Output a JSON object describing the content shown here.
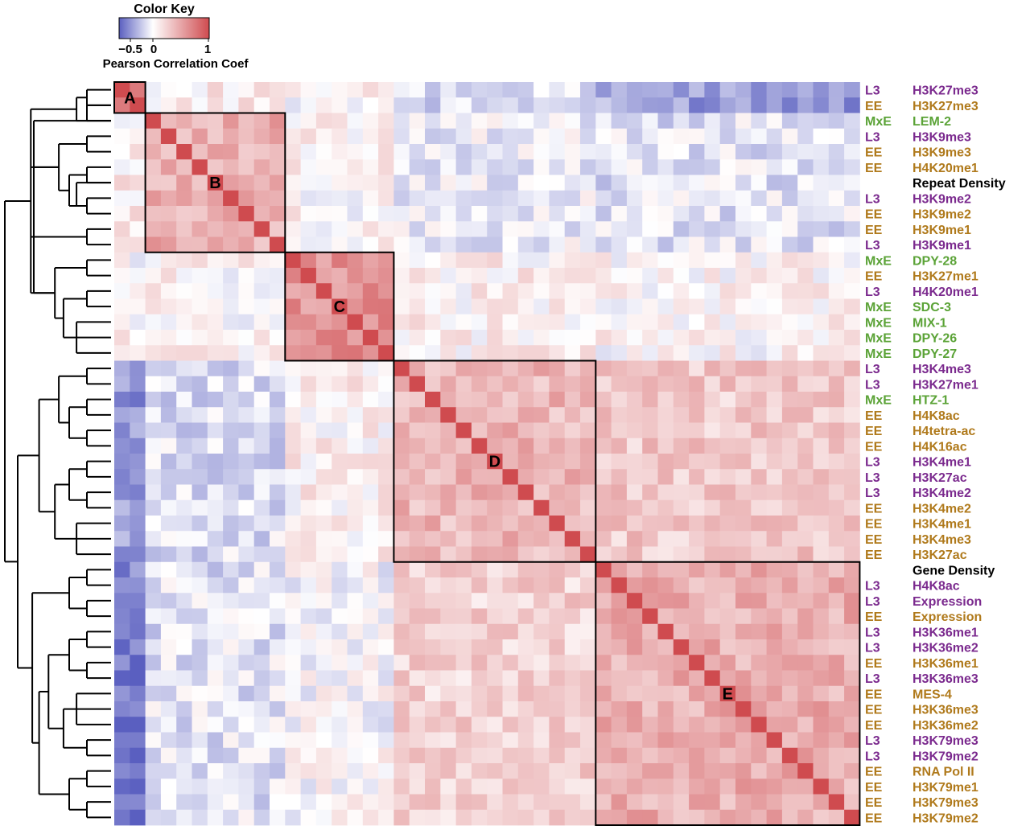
{
  "colors": {
    "low": "#5a5fc0",
    "mid": "#ffffff",
    "high": "#cf4b4f",
    "label_L3": "#7b2a8e",
    "label_EE": "#b07a1c",
    "label_MxE": "#5ba337",
    "label_none": "#000000"
  },
  "chart_data": {
    "type": "heatmap",
    "title": "",
    "color_key": {
      "title": "Color Key",
      "subtitle": "Pearson Correlation Coef",
      "ticks": [
        "−0.5",
        "0",
        "1"
      ],
      "range": [
        -0.6,
        1
      ]
    },
    "rows": [
      {
        "stage": "L3",
        "mark": "H3K27me3"
      },
      {
        "stage": "EE",
        "mark": "H3K27me3"
      },
      {
        "stage": "MxE",
        "mark": "LEM-2"
      },
      {
        "stage": "L3",
        "mark": "H3K9me3"
      },
      {
        "stage": "EE",
        "mark": "H3K9me3"
      },
      {
        "stage": "EE",
        "mark": "H4K20me1"
      },
      {
        "stage": "",
        "mark": "Repeat Density"
      },
      {
        "stage": "L3",
        "mark": "H3K9me2"
      },
      {
        "stage": "EE",
        "mark": "H3K9me2"
      },
      {
        "stage": "EE",
        "mark": "H3K9me1"
      },
      {
        "stage": "L3",
        "mark": "H3K9me1"
      },
      {
        "stage": "MxE",
        "mark": "DPY-28"
      },
      {
        "stage": "EE",
        "mark": "H3K27me1"
      },
      {
        "stage": "L3",
        "mark": "H4K20me1"
      },
      {
        "stage": "MxE",
        "mark": "SDC-3"
      },
      {
        "stage": "MxE",
        "mark": "MIX-1"
      },
      {
        "stage": "MxE",
        "mark": "DPY-26"
      },
      {
        "stage": "MxE",
        "mark": "DPY-27"
      },
      {
        "stage": "L3",
        "mark": "H3K4me3"
      },
      {
        "stage": "L3",
        "mark": "H3K27me1"
      },
      {
        "stage": "MxE",
        "mark": "HTZ-1"
      },
      {
        "stage": "EE",
        "mark": "H4K8ac"
      },
      {
        "stage": "EE",
        "mark": "H4tetra-ac"
      },
      {
        "stage": "EE",
        "mark": "H4K16ac"
      },
      {
        "stage": "L3",
        "mark": "H3K4me1"
      },
      {
        "stage": "L3",
        "mark": "H3K27ac"
      },
      {
        "stage": "L3",
        "mark": "H3K4me2"
      },
      {
        "stage": "EE",
        "mark": "H3K4me2"
      },
      {
        "stage": "EE",
        "mark": "H3K4me1"
      },
      {
        "stage": "EE",
        "mark": "H3K4me3"
      },
      {
        "stage": "EE",
        "mark": "H3K27ac"
      },
      {
        "stage": "",
        "mark": "Gene Density"
      },
      {
        "stage": "L3",
        "mark": "H4K8ac"
      },
      {
        "stage": "L3",
        "mark": "Expression"
      },
      {
        "stage": "EE",
        "mark": "Expression"
      },
      {
        "stage": "L3",
        "mark": "H3K36me1"
      },
      {
        "stage": "L3",
        "mark": "H3K36me2"
      },
      {
        "stage": "EE",
        "mark": "H3K36me1"
      },
      {
        "stage": "L3",
        "mark": "H3K36me3"
      },
      {
        "stage": "EE",
        "mark": "MES-4"
      },
      {
        "stage": "EE",
        "mark": "H3K36me3"
      },
      {
        "stage": "EE",
        "mark": "H3K36me2"
      },
      {
        "stage": "L3",
        "mark": "H3K79me3"
      },
      {
        "stage": "L3",
        "mark": "H3K79me2"
      },
      {
        "stage": "EE",
        "mark": "RNA Pol II"
      },
      {
        "stage": "EE",
        "mark": "H3K79me1"
      },
      {
        "stage": "EE",
        "mark": "H3K79me3"
      },
      {
        "stage": "EE",
        "mark": "H3K79me2"
      }
    ],
    "clusters": [
      {
        "label": "A",
        "start": 0,
        "end": 1
      },
      {
        "label": "B",
        "start": 2,
        "end": 10
      },
      {
        "label": "C",
        "start": 11,
        "end": 17
      },
      {
        "label": "D",
        "start": 18,
        "end": 30
      },
      {
        "label": "E",
        "start": 31,
        "end": 47
      }
    ],
    "block_correlation": [
      [
        0.85,
        0.1,
        0.05,
        -0.15,
        -0.35
      ],
      [
        0.1,
        0.45,
        0.05,
        -0.05,
        -0.1
      ],
      [
        0.05,
        0.05,
        0.6,
        0.08,
        0.05
      ],
      [
        -0.4,
        -0.12,
        0.08,
        0.4,
        0.3
      ],
      [
        -0.5,
        -0.1,
        0.0,
        0.25,
        0.45
      ]
    ],
    "dendrogram": {
      "leaves": 48,
      "merges": [
        [
          0,
          1
        ],
        [
          1,
          2
        ],
        [
          0,
          2
        ],
        [
          3,
          4
        ],
        [
          5,
          6
        ],
        [
          7,
          8
        ],
        [
          9,
          10
        ],
        [
          6,
          8
        ],
        [
          5,
          8
        ],
        [
          3,
          8
        ],
        [
          11,
          12
        ],
        [
          13,
          14
        ],
        [
          15,
          17
        ],
        [
          13,
          17
        ],
        [
          11,
          17
        ],
        [
          2,
          17
        ],
        [
          0,
          17
        ],
        [
          18,
          19
        ],
        [
          20,
          21
        ],
        [
          22,
          23
        ],
        [
          24,
          25
        ],
        [
          26,
          27
        ],
        [
          28,
          30
        ],
        [
          20,
          23
        ],
        [
          24,
          27
        ],
        [
          18,
          23
        ],
        [
          24,
          30
        ],
        [
          18,
          30
        ],
        [
          31,
          32
        ],
        [
          33,
          34
        ],
        [
          35,
          36
        ],
        [
          37,
          38
        ],
        [
          39,
          41
        ],
        [
          42,
          43
        ],
        [
          44,
          45
        ],
        [
          46,
          47
        ],
        [
          31,
          34
        ],
        [
          35,
          38
        ],
        [
          39,
          43
        ],
        [
          44,
          47
        ],
        [
          35,
          43
        ],
        [
          35,
          47
        ],
        [
          31,
          47
        ],
        [
          18,
          47
        ],
        [
          0,
          47
        ]
      ]
    }
  }
}
